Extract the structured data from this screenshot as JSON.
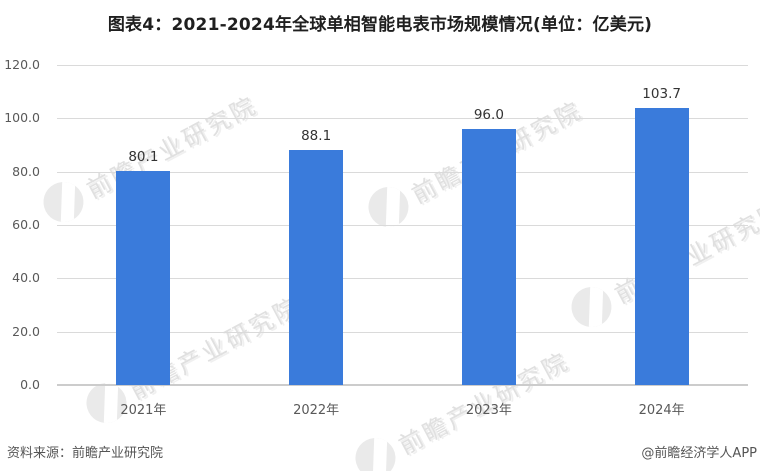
{
  "page": {
    "title": "图表4：2021-2024年全球单相智能电表市场规模情况(单位：亿美元)",
    "footer": {
      "source": "资料来源：前瞻产业研究院",
      "credit": "@前瞻经济学人APP"
    },
    "watermark_text": "前瞻产业研究院"
  },
  "colors": {
    "bar": "#3A7BDB",
    "gridline": "#DADADA",
    "axis_line": "#CCCCCC",
    "tick_label": "#595959",
    "value_label": "#333333",
    "title": "#1F1F1F",
    "footer": "#555555",
    "watermark": "#E0E0E0"
  },
  "chart_data": {
    "type": "bar",
    "title": "图表4：2021-2024年全球单相智能电表市场规模情况(单位：亿美元)",
    "unit": "亿美元",
    "categories": [
      "2021年",
      "2022年",
      "2023年",
      "2024年"
    ],
    "values": [
      80.1,
      88.1,
      96.0,
      103.7
    ],
    "value_labels": [
      "80.1",
      "88.1",
      "96.0",
      "103.7"
    ],
    "xlabel": "",
    "ylabel": "",
    "ylim": [
      0,
      120
    ],
    "yticks": [
      0,
      20,
      40,
      60,
      80,
      100,
      120
    ],
    "ytick_labels": [
      "0.0",
      "20.0",
      "40.0",
      "60.0",
      "80.0",
      "100.0",
      "120.0"
    ],
    "grid": "horizontal",
    "legend": "none",
    "bar_color": "#3A7BDB"
  }
}
